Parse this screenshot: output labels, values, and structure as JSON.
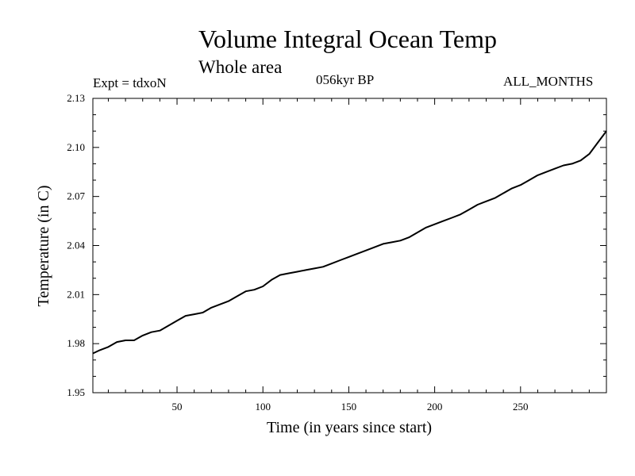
{
  "chart_data": {
    "type": "line",
    "title": "Volume Integral Ocean Temp",
    "subtitle": "Whole area",
    "annotations": {
      "left": "Expt = tdxoN",
      "center": "056kyr BP",
      "right": "ALL_MONTHS"
    },
    "xlabel": "Time (in years since start)",
    "ylabel": "Temperature (in C)",
    "xlim": [
      1,
      300
    ],
    "ylim": [
      1.95,
      2.13
    ],
    "xticks": [
      50,
      100,
      150,
      200,
      250
    ],
    "xtick_labels": [
      "50",
      "100",
      "150",
      "200",
      "250"
    ],
    "yticks": [
      1.95,
      1.98,
      2.01,
      2.04,
      2.07,
      2.1,
      2.13
    ],
    "ytick_labels": [
      "1.95",
      "1.98",
      "2.01",
      "2.04",
      "2.07",
      "2.10",
      "2.13"
    ],
    "grid": false,
    "series": [
      {
        "color": "#000000",
        "x": [
          1,
          5,
          10,
          15,
          20,
          25,
          30,
          35,
          40,
          45,
          50,
          55,
          60,
          65,
          70,
          75,
          80,
          85,
          90,
          95,
          100,
          105,
          110,
          115,
          120,
          125,
          130,
          135,
          140,
          145,
          150,
          155,
          160,
          165,
          170,
          175,
          180,
          185,
          190,
          195,
          200,
          205,
          210,
          215,
          220,
          225,
          230,
          235,
          240,
          245,
          250,
          255,
          260,
          265,
          270,
          275,
          280,
          285,
          290,
          295,
          300
        ],
        "y": [
          1.974,
          1.976,
          1.978,
          1.981,
          1.982,
          1.982,
          1.985,
          1.987,
          1.988,
          1.991,
          1.994,
          1.997,
          1.998,
          1.999,
          2.002,
          2.004,
          2.006,
          2.009,
          2.012,
          2.013,
          2.015,
          2.019,
          2.022,
          2.023,
          2.024,
          2.025,
          2.026,
          2.027,
          2.029,
          2.031,
          2.033,
          2.035,
          2.037,
          2.039,
          2.041,
          2.042,
          2.043,
          2.045,
          2.048,
          2.051,
          2.053,
          2.055,
          2.057,
          2.059,
          2.062,
          2.065,
          2.067,
          2.069,
          2.072,
          2.075,
          2.077,
          2.08,
          2.083,
          2.085,
          2.087,
          2.089,
          2.09,
          2.092,
          2.096,
          2.103,
          2.11
        ]
      }
    ]
  }
}
